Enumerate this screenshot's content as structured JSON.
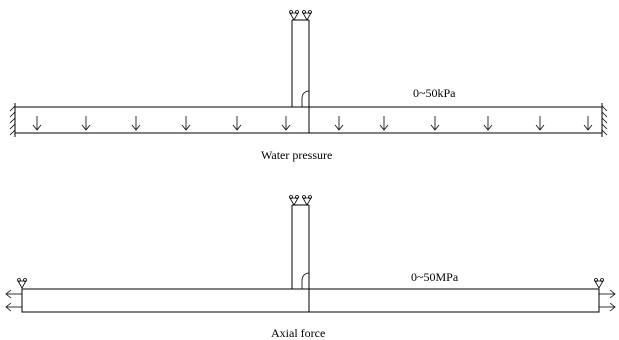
{
  "diagram_top": {
    "load_label": "0~50kPa",
    "caption": "Water pressure"
  },
  "diagram_bottom": {
    "load_label": "0~50MPa",
    "caption": "Axial force"
  }
}
